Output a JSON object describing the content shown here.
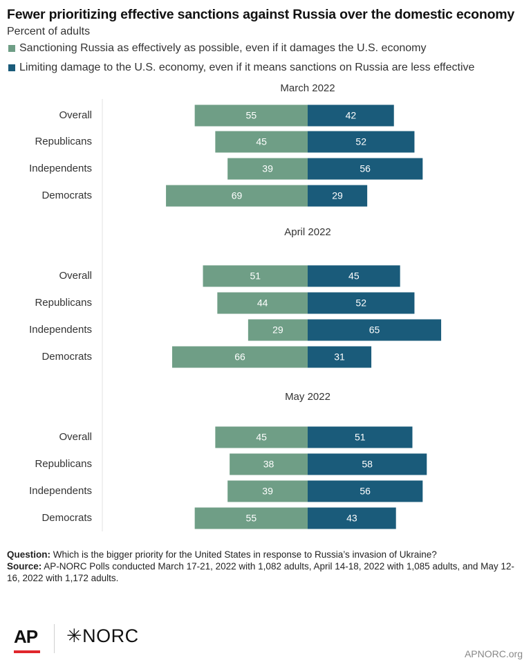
{
  "title": "Fewer prioritizing effective sanctions against Russia over the domestic economy",
  "subtitle": "Percent of adults",
  "legend": [
    {
      "label": "Sanctioning Russia as effectively as possible, even if it damages the U.S. economy",
      "color": "#6f9e86"
    },
    {
      "label": "Limiting damage to the U.S. economy, even if it means sanctions on Russia are less effective",
      "color": "#1a5b7a"
    }
  ],
  "chart_data": {
    "type": "bar",
    "orientation": "horizontal-diverging",
    "series": [
      {
        "name": "Sanctioning Russia as effectively as possible, even if it damages the U.S. economy",
        "color": "#6f9e86"
      },
      {
        "name": "Limiting damage to the U.S. economy, even if it means sanctions on Russia are less effective",
        "color": "#1a5b7a"
      }
    ],
    "panels": [
      {
        "title": "March 2022",
        "categories": [
          "Overall",
          "Republicans",
          "Independents",
          "Democrats"
        ],
        "sanction": [
          55,
          45,
          39,
          69
        ],
        "limit": [
          42,
          52,
          56,
          29
        ]
      },
      {
        "title": "April 2022",
        "categories": [
          "Overall",
          "Republicans",
          "Independents",
          "Democrats"
        ],
        "sanction": [
          51,
          44,
          29,
          66
        ],
        "limit": [
          45,
          52,
          65,
          31
        ]
      },
      {
        "title": "May 2022",
        "categories": [
          "Overall",
          "Republicans",
          "Independents",
          "Democrats"
        ],
        "sanction": [
          45,
          38,
          39,
          55
        ],
        "limit": [
          51,
          58,
          56,
          43
        ]
      }
    ]
  },
  "footer": {
    "question_label": "Question:",
    "question_text": "Which is the bigger priority for the United States in response to Russia’s invasion of Ukraine?",
    "source_label": "Source:",
    "source_text": "AP-NORC Polls conducted March 17-21, 2022 with 1,082 adults, April 14-18, 2022 with 1,085 adults, and May 12-16, 2022 with 1,172 adults."
  },
  "branding": {
    "ap": "AP",
    "norc": "✳NORC",
    "site": "APNORC.org"
  }
}
